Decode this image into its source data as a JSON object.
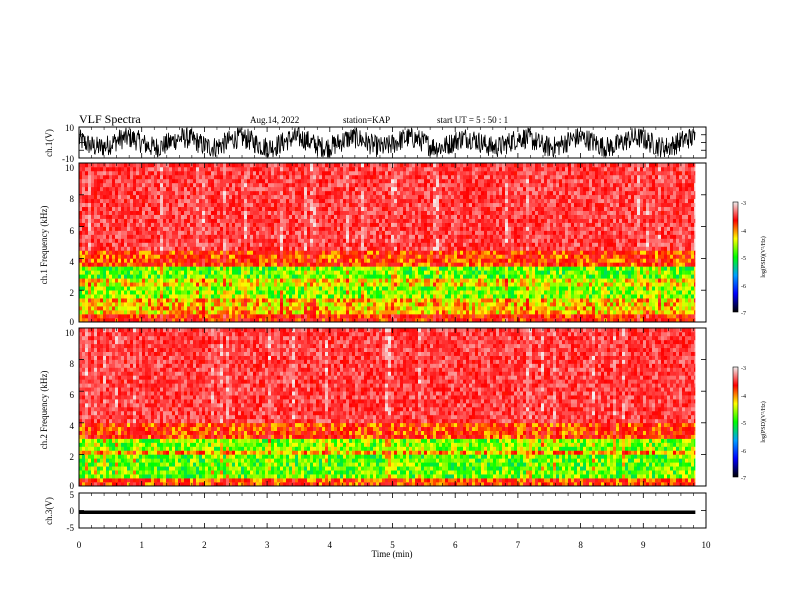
{
  "header": {
    "title": "VLF Spectra",
    "date": "Aug.14, 2022",
    "station": "station=KAP",
    "start": "start  UT  =   5  : 50 : 1"
  },
  "chart_data": [
    {
      "type": "line",
      "name": "ch1-waveform",
      "ylabel": "ch.1(V)",
      "ylim": [
        -10,
        10
      ],
      "yticks": [
        "10",
        "-10"
      ],
      "x_end": 9.83
    },
    {
      "type": "heatmap",
      "name": "ch1-spectrogram",
      "ylabel": "ch.1\nFrequency  (kHz)",
      "ylim": [
        0,
        10
      ],
      "yticks": [
        "10",
        "8",
        "6",
        "4",
        "2",
        "0"
      ],
      "x_end": 9.83,
      "bands": [
        {
          "from": 0.0,
          "to": 0.3,
          "level": -4.2
        },
        {
          "from": 0.3,
          "to": 1.3,
          "level": -4.7
        },
        {
          "from": 1.3,
          "to": 1.5,
          "level": -5.3
        },
        {
          "from": 1.5,
          "to": 2.2,
          "level": -5.1
        },
        {
          "from": 2.2,
          "to": 2.6,
          "level": -4.8
        },
        {
          "from": 2.6,
          "to": 3.5,
          "level": -5.2
        },
        {
          "from": 3.5,
          "to": 4.5,
          "level": -4.3
        },
        {
          "from": 4.5,
          "to": 10.0,
          "level": -3.8
        }
      ],
      "colorbar": {
        "label": "log(PSD)(V²/Hz)",
        "range": [
          -7,
          -3
        ],
        "ticks": [
          "-3",
          "-4",
          "-5",
          "-6",
          "-7"
        ],
        "colors": [
          "#f0f0f0",
          "#ff0000",
          "#ffff00",
          "#00ff00",
          "#00a0ff",
          "#0000ff",
          "#000000"
        ]
      }
    },
    {
      "type": "heatmap",
      "name": "ch2-spectrogram",
      "ylabel": "ch.2\nFrequency  (kHz)",
      "ylim": [
        0,
        10
      ],
      "yticks": [
        "10",
        "8",
        "6",
        "4",
        "2",
        "0"
      ],
      "x_end": 9.83,
      "bands": [
        {
          "from": 0.0,
          "to": 0.3,
          "level": -4.3
        },
        {
          "from": 0.3,
          "to": 1.8,
          "level": -5.2
        },
        {
          "from": 1.8,
          "to": 2.2,
          "level": -4.6
        },
        {
          "from": 2.2,
          "to": 3.0,
          "level": -5.1
        },
        {
          "from": 3.0,
          "to": 4.0,
          "level": -4.3
        },
        {
          "from": 4.0,
          "to": 10.0,
          "level": -3.8
        }
      ],
      "colorbar": {
        "label": "log(PSD)(V²/Hz)",
        "range": [
          -7,
          -3
        ],
        "ticks": [
          "-3",
          "-4",
          "-5",
          "-6",
          "-7"
        ],
        "colors": [
          "#f0f0f0",
          "#ff0000",
          "#ffff00",
          "#00ff00",
          "#00a0ff",
          "#0000ff",
          "#000000"
        ]
      }
    },
    {
      "type": "line",
      "name": "ch3-waveform",
      "ylabel": "ch.3(V)",
      "ylim": [
        -5,
        5
      ],
      "yticks": [
        "5",
        "0",
        "-5"
      ],
      "x_end": 9.83,
      "band": [
        -1.0,
        0.0
      ]
    }
  ],
  "xaxis": {
    "label": "Time  (min)",
    "range": [
      0,
      10
    ],
    "ticks": [
      "0",
      "1",
      "2",
      "3",
      "4",
      "5",
      "6",
      "7",
      "8",
      "9",
      "10"
    ]
  }
}
